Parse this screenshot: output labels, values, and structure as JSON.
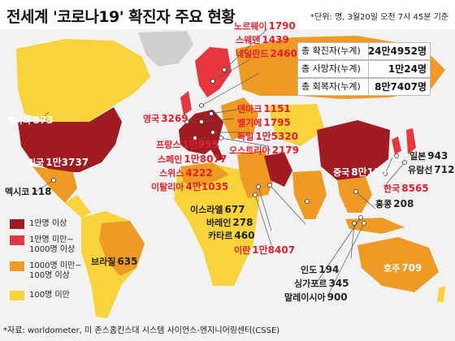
{
  "header": {
    "title": "전세계 '코로나19' 확진자 주요 현황",
    "unit_note": "*단위: 명, 3월20일 오전 7시 45분 기준"
  },
  "totals": [
    {
      "label": "총 확진자(누계)",
      "value": "24만4952명"
    },
    {
      "label": "총 사망자(누계)",
      "value": "1만24명"
    },
    {
      "label": "총 회복자(누계)",
      "value": "8만7407명"
    }
  ],
  "countries": [
    {
      "name": "노르웨이",
      "value": "1790"
    },
    {
      "name": "스웨덴",
      "value": "1439"
    },
    {
      "name": "네덜란드",
      "value": "2460"
    },
    {
      "name": "캐나다",
      "value": "873"
    },
    {
      "name": "영국",
      "value": "3269"
    },
    {
      "name": "덴마크",
      "value": "1151"
    },
    {
      "name": "벨기에",
      "value": "1795"
    },
    {
      "name": "독일",
      "value": "1만5320"
    },
    {
      "name": "오스트리아",
      "value": "2179"
    },
    {
      "name": "프랑스",
      "value": "1만995"
    },
    {
      "name": "스페인",
      "value": "1만8077"
    },
    {
      "name": "스위스",
      "value": "4222"
    },
    {
      "name": "이탈리아",
      "value": "4만1035"
    },
    {
      "name": "미국",
      "value": "1만3737"
    },
    {
      "name": "멕시코",
      "value": "118"
    },
    {
      "name": "중국",
      "value": "8만1155"
    },
    {
      "name": "일본",
      "value": "943"
    },
    {
      "name": "유람선",
      "value": "712"
    },
    {
      "name": "한국",
      "value": "8565"
    },
    {
      "name": "홍콩",
      "value": "208"
    },
    {
      "name": "이스라엘",
      "value": "677"
    },
    {
      "name": "바레인",
      "value": "278"
    },
    {
      "name": "카타르",
      "value": "460"
    },
    {
      "name": "이란",
      "value": "1만8407"
    },
    {
      "name": "브라질",
      "value": "635"
    },
    {
      "name": "인도",
      "value": "194"
    },
    {
      "name": "싱가포르",
      "value": "345"
    },
    {
      "name": "말레이시아",
      "value": "900"
    },
    {
      "name": "호주",
      "value": "709"
    }
  ],
  "legend": [
    {
      "label": "1만명 이상",
      "color": "#a01c22"
    },
    {
      "label": "1만명 미만~\n1000명 이상",
      "color": "#e5373d"
    },
    {
      "label": "1000명 미만~\n100명 이상",
      "color": "#ef9a24"
    },
    {
      "label": "100명 미만",
      "color": "#f8d33a"
    }
  ],
  "colors": {
    "ocean": "#f3f3f3",
    "land_none": "#cfcfcf",
    "tier1": "#a01c22",
    "tier2": "#e5373d",
    "tier3": "#ef9a24",
    "tier4": "#f8d33a"
  },
  "source": "*자료: worldometer, 미 존스홉킨스대 시스템 사이언스-엔지니어링센터(CSSE)"
}
